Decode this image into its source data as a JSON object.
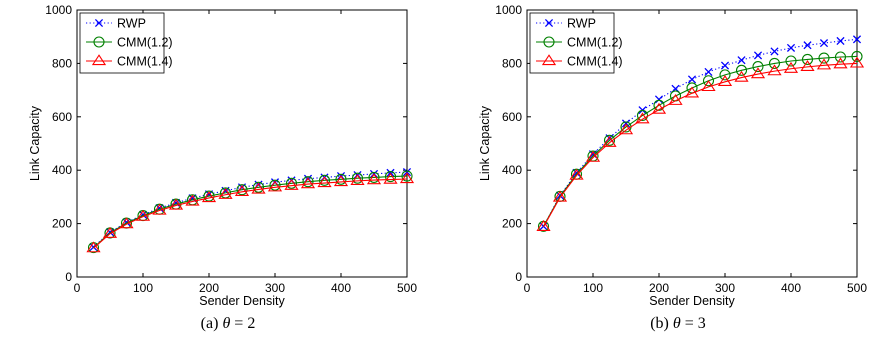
{
  "chart_data": [
    {
      "id": "a",
      "type": "line",
      "xlabel": "Sender Density",
      "ylabel": "Link Capacity",
      "xlim": [
        0,
        500
      ],
      "ylim": [
        0,
        1000
      ],
      "xticks": [
        0,
        100,
        200,
        300,
        400,
        500
      ],
      "yticks": [
        0,
        200,
        400,
        600,
        800,
        1000
      ],
      "grid": false,
      "legend_position": "top-left",
      "caption_prefix": "(a)",
      "caption_theta": "θ",
      "caption_value": "= 2",
      "x": [
        25,
        50,
        75,
        100,
        125,
        150,
        175,
        200,
        225,
        250,
        275,
        300,
        325,
        350,
        375,
        400,
        425,
        450,
        475,
        500
      ],
      "series": [
        {
          "name": "RWP",
          "color": "#0000ff",
          "marker": "x",
          "line": "dotted",
          "values": [
            112,
            168,
            205,
            233,
            258,
            278,
            295,
            310,
            323,
            336,
            346,
            355,
            362,
            368,
            373,
            378,
            382,
            386,
            390,
            393
          ]
        },
        {
          "name": "CMM(1.2)",
          "color": "#008000",
          "marker": "circle",
          "line": "solid",
          "values": [
            110,
            165,
            202,
            230,
            254,
            273,
            289,
            303,
            315,
            327,
            336,
            344,
            351,
            357,
            362,
            366,
            370,
            373,
            376,
            378
          ]
        },
        {
          "name": "CMM(1.4)",
          "color": "#ff0000",
          "marker": "triangle",
          "line": "solid",
          "values": [
            108,
            162,
            198,
            226,
            249,
            268,
            283,
            296,
            308,
            319,
            328,
            336,
            342,
            348,
            352,
            356,
            360,
            363,
            365,
            367
          ]
        }
      ]
    },
    {
      "id": "b",
      "type": "line",
      "xlabel": "Sender Density",
      "ylabel": "Link Capacity",
      "xlim": [
        0,
        500
      ],
      "ylim": [
        0,
        1000
      ],
      "xticks": [
        0,
        100,
        200,
        300,
        400,
        500
      ],
      "yticks": [
        0,
        200,
        400,
        600,
        800,
        1000
      ],
      "grid": false,
      "legend_position": "top-left",
      "caption_prefix": "(b)",
      "caption_theta": "θ",
      "caption_value": "= 3",
      "x": [
        25,
        50,
        75,
        100,
        125,
        150,
        175,
        200,
        225,
        250,
        275,
        300,
        325,
        350,
        375,
        400,
        425,
        450,
        475,
        500
      ],
      "series": [
        {
          "name": "RWP",
          "color": "#0000ff",
          "marker": "x",
          "line": "dotted",
          "values": [
            190,
            305,
            390,
            460,
            520,
            575,
            625,
            665,
            705,
            740,
            768,
            792,
            812,
            830,
            845,
            858,
            868,
            876,
            884,
            890
          ]
        },
        {
          "name": "CMM(1.2)",
          "color": "#008000",
          "marker": "circle",
          "line": "solid",
          "values": [
            190,
            302,
            385,
            453,
            512,
            562,
            605,
            643,
            678,
            708,
            735,
            757,
            774,
            788,
            800,
            809,
            815,
            820,
            824,
            826
          ]
        },
        {
          "name": "CMM(1.4)",
          "color": "#ff0000",
          "marker": "triangle",
          "line": "solid",
          "values": [
            188,
            298,
            380,
            447,
            503,
            550,
            591,
            627,
            660,
            688,
            712,
            731,
            747,
            760,
            771,
            780,
            787,
            793,
            797,
            800
          ]
        }
      ]
    }
  ]
}
